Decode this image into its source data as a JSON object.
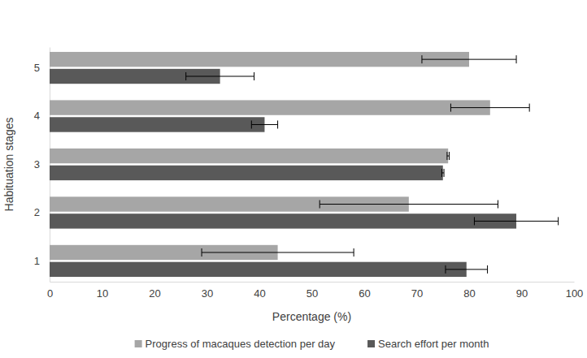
{
  "chart_data": {
    "type": "bar",
    "orientation": "horizontal",
    "legend": "bottom",
    "grid": false,
    "x_label": "Percentage (%)",
    "y_label": "Habituation stages",
    "categories": [
      "1",
      "2",
      "3",
      "4",
      "5"
    ],
    "xlim": [
      0,
      100
    ],
    "xticks": [
      0,
      10,
      20,
      30,
      40,
      50,
      60,
      70,
      80,
      90,
      100
    ],
    "series": [
      {
        "name": "Progress of macaques detection per day",
        "color": "#a6a6a6",
        "values": [
          43.5,
          68.5,
          76,
          84,
          80
        ],
        "errors": [
          14.5,
          17,
          0.2,
          7.5,
          9
        ]
      },
      {
        "name": "Search effort per month",
        "color": "#595959",
        "values": [
          79.5,
          89,
          75,
          41,
          32.5
        ],
        "errors": [
          4,
          8,
          0.2,
          2.5,
          6.5
        ]
      }
    ]
  }
}
